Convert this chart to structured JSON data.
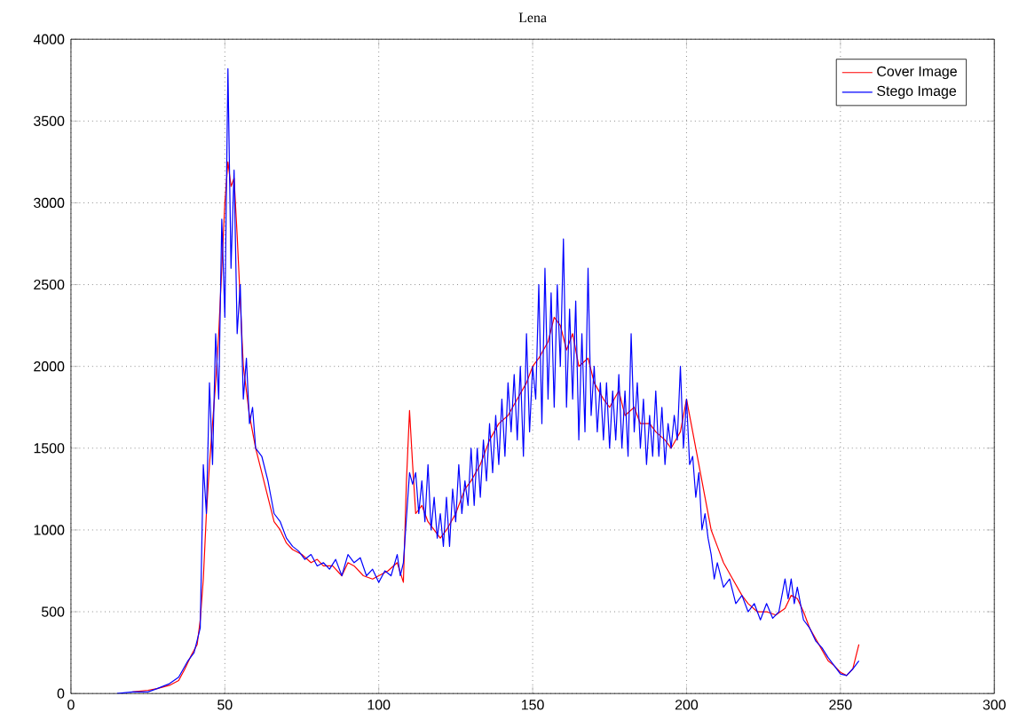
{
  "chart_data": {
    "type": "line",
    "title": "Lena",
    "xlim": [
      0,
      300
    ],
    "ylim": [
      0,
      4000
    ],
    "xticks": [
      0,
      50,
      100,
      150,
      200,
      250,
      300
    ],
    "yticks": [
      0,
      500,
      1000,
      1500,
      2000,
      2500,
      3000,
      3500,
      4000
    ],
    "grid": true,
    "legend": "top right",
    "series": [
      {
        "name": "Cover Image",
        "color": "#ff0000",
        "x": [
          20,
          25,
          28,
          32,
          35,
          37,
          39,
          41,
          42,
          43,
          44,
          45,
          46,
          47,
          48,
          49,
          50,
          51,
          52,
          53,
          54,
          55,
          56,
          57,
          58,
          60,
          62,
          64,
          66,
          68,
          70,
          72,
          75,
          78,
          80,
          82,
          85,
          88,
          90,
          92,
          95,
          98,
          100,
          103,
          106,
          108,
          109,
          110,
          111,
          112,
          114,
          116,
          118,
          120,
          122,
          125,
          128,
          130,
          133,
          136,
          139,
          142,
          145,
          148,
          150,
          152,
          155,
          157,
          159,
          161,
          163,
          165,
          168,
          170,
          173,
          175,
          178,
          180,
          183,
          185,
          188,
          190,
          193,
          195,
          198,
          200,
          202,
          204,
          206,
          208,
          210,
          212,
          215,
          218,
          220,
          223,
          226,
          229,
          232,
          234,
          236,
          238,
          240,
          243,
          246,
          248,
          250,
          252,
          254,
          256
        ],
        "values": [
          10,
          20,
          30,
          50,
          80,
          150,
          230,
          300,
          450,
          700,
          1100,
          1400,
          1650,
          1900,
          2200,
          2600,
          3000,
          3250,
          3100,
          3150,
          2800,
          2400,
          2000,
          1850,
          1700,
          1500,
          1350,
          1200,
          1050,
          1000,
          920,
          880,
          850,
          800,
          820,
          780,
          780,
          720,
          800,
          780,
          720,
          700,
          720,
          750,
          800,
          680,
          1300,
          1730,
          1400,
          1100,
          1150,
          1050,
          1000,
          950,
          1000,
          1100,
          1250,
          1300,
          1400,
          1550,
          1650,
          1700,
          1800,
          1900,
          2000,
          2050,
          2150,
          2300,
          2250,
          2100,
          2200,
          2000,
          2050,
          1900,
          1800,
          1750,
          1850,
          1700,
          1750,
          1650,
          1650,
          1600,
          1550,
          1500,
          1600,
          1800,
          1600,
          1400,
          1200,
          1000,
          900,
          800,
          700,
          600,
          550,
          500,
          500,
          480,
          520,
          600,
          580,
          500,
          400,
          300,
          200,
          170,
          130,
          110,
          150,
          300
        ]
      },
      {
        "name": "Stego Image",
        "color": "#0000ff",
        "x": [
          15,
          20,
          25,
          28,
          32,
          35,
          38,
          40,
          42,
          43,
          44,
          45,
          46,
          47,
          48,
          49,
          50,
          51,
          52,
          53,
          54,
          55,
          56,
          57,
          58,
          59,
          60,
          62,
          64,
          66,
          68,
          70,
          72,
          74,
          76,
          78,
          80,
          82,
          84,
          86,
          88,
          90,
          92,
          94,
          96,
          98,
          100,
          102,
          104,
          106,
          107,
          108,
          110,
          111,
          112,
          113,
          114,
          115,
          116,
          117,
          118,
          119,
          120,
          121,
          122,
          123,
          124,
          125,
          126,
          127,
          128,
          129,
          130,
          131,
          132,
          133,
          134,
          135,
          136,
          137,
          138,
          139,
          140,
          141,
          142,
          143,
          144,
          145,
          146,
          147,
          148,
          149,
          150,
          151,
          152,
          153,
          154,
          155,
          156,
          157,
          158,
          159,
          160,
          161,
          162,
          163,
          164,
          165,
          166,
          167,
          168,
          169,
          170,
          171,
          172,
          173,
          174,
          175,
          176,
          177,
          178,
          179,
          180,
          181,
          182,
          183,
          184,
          185,
          186,
          187,
          188,
          189,
          190,
          191,
          192,
          193,
          194,
          195,
          196,
          197,
          198,
          199,
          200,
          201,
          202,
          203,
          204,
          205,
          206,
          207,
          208,
          209,
          210,
          212,
          214,
          216,
          218,
          220,
          222,
          224,
          226,
          228,
          230,
          232,
          233,
          234,
          235,
          236,
          238,
          240,
          242,
          244,
          246,
          248,
          250,
          252,
          254,
          256
        ],
        "values": [
          0,
          10,
          10,
          30,
          60,
          100,
          200,
          250,
          400,
          1400,
          1100,
          1900,
          1400,
          2200,
          1800,
          2900,
          2300,
          3820,
          2600,
          3200,
          2200,
          2500,
          1800,
          2050,
          1650,
          1750,
          1500,
          1450,
          1300,
          1100,
          1050,
          950,
          900,
          870,
          820,
          850,
          780,
          800,
          760,
          820,
          720,
          850,
          800,
          830,
          720,
          760,
          680,
          750,
          720,
          850,
          720,
          800,
          1350,
          1280,
          1350,
          1100,
          1300,
          1050,
          1400,
          1000,
          1200,
          950,
          1100,
          900,
          1200,
          900,
          1250,
          1050,
          1400,
          1100,
          1300,
          1150,
          1500,
          1150,
          1500,
          1200,
          1550,
          1300,
          1650,
          1350,
          1700,
          1400,
          1800,
          1450,
          1900,
          1600,
          1950,
          1550,
          2000,
          1450,
          2200,
          1600,
          2000,
          1800,
          2500,
          1650,
          2600,
          1800,
          2450,
          1750,
          2500,
          2000,
          2780,
          1750,
          2350,
          1800,
          2400,
          1550,
          2200,
          1600,
          2600,
          1700,
          2000,
          1600,
          1900,
          1550,
          1900,
          1500,
          1850,
          1550,
          1950,
          1500,
          1850,
          1450,
          2200,
          1600,
          1900,
          1500,
          1800,
          1400,
          1700,
          1450,
          1850,
          1450,
          1750,
          1400,
          1650,
          1500,
          1700,
          1550,
          2000,
          1500,
          1800,
          1400,
          1450,
          1200,
          1350,
          1000,
          1100,
          950,
          850,
          700,
          800,
          650,
          700,
          550,
          600,
          500,
          550,
          450,
          550,
          460,
          500,
          700,
          580,
          700,
          550,
          650,
          450,
          400,
          320,
          280,
          220,
          170,
          120,
          110,
          150,
          200
        ]
      }
    ]
  }
}
